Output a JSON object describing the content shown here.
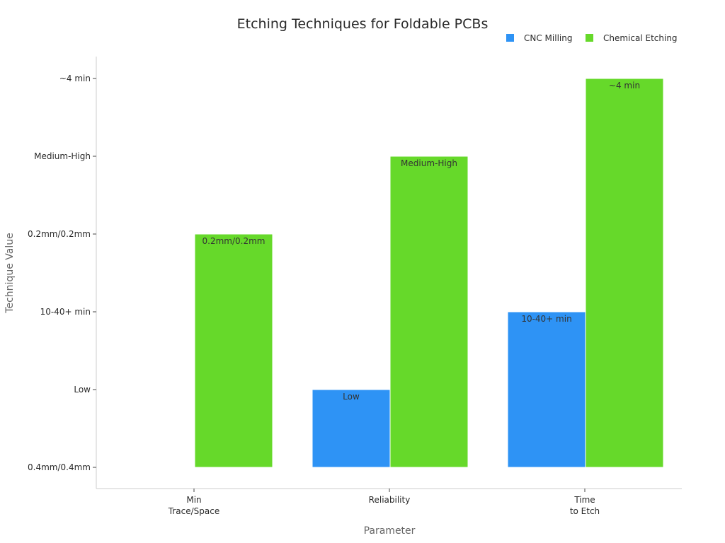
{
  "chart_data": {
    "type": "bar",
    "title": "Etching Techniques for Foldable PCBs",
    "xlabel": "Parameter",
    "ylabel": "Technique Value",
    "categories": [
      [
        "Min",
        "Trace/Space"
      ],
      [
        "Reliability"
      ],
      [
        "Time",
        "to Etch"
      ]
    ],
    "y_tick_labels": [
      "0.4mm/0.4mm",
      "Low",
      "10-40+ min",
      "0.2mm/0.2mm",
      "Medium-High",
      "~4 min"
    ],
    "series": [
      {
        "name": "CNC Milling",
        "color": "#2e93f5",
        "values": [
          0,
          1,
          2
        ],
        "labels": [
          "0.4mm/0.4mm",
          "Low",
          "10-40+ min"
        ]
      },
      {
        "name": "Chemical Etching",
        "color": "#66d92a",
        "values": [
          3,
          4,
          5
        ],
        "labels": [
          "0.2mm/0.2mm",
          "Medium-High",
          "~4 min"
        ]
      }
    ],
    "legend_position": "top-right",
    "grid": false
  }
}
